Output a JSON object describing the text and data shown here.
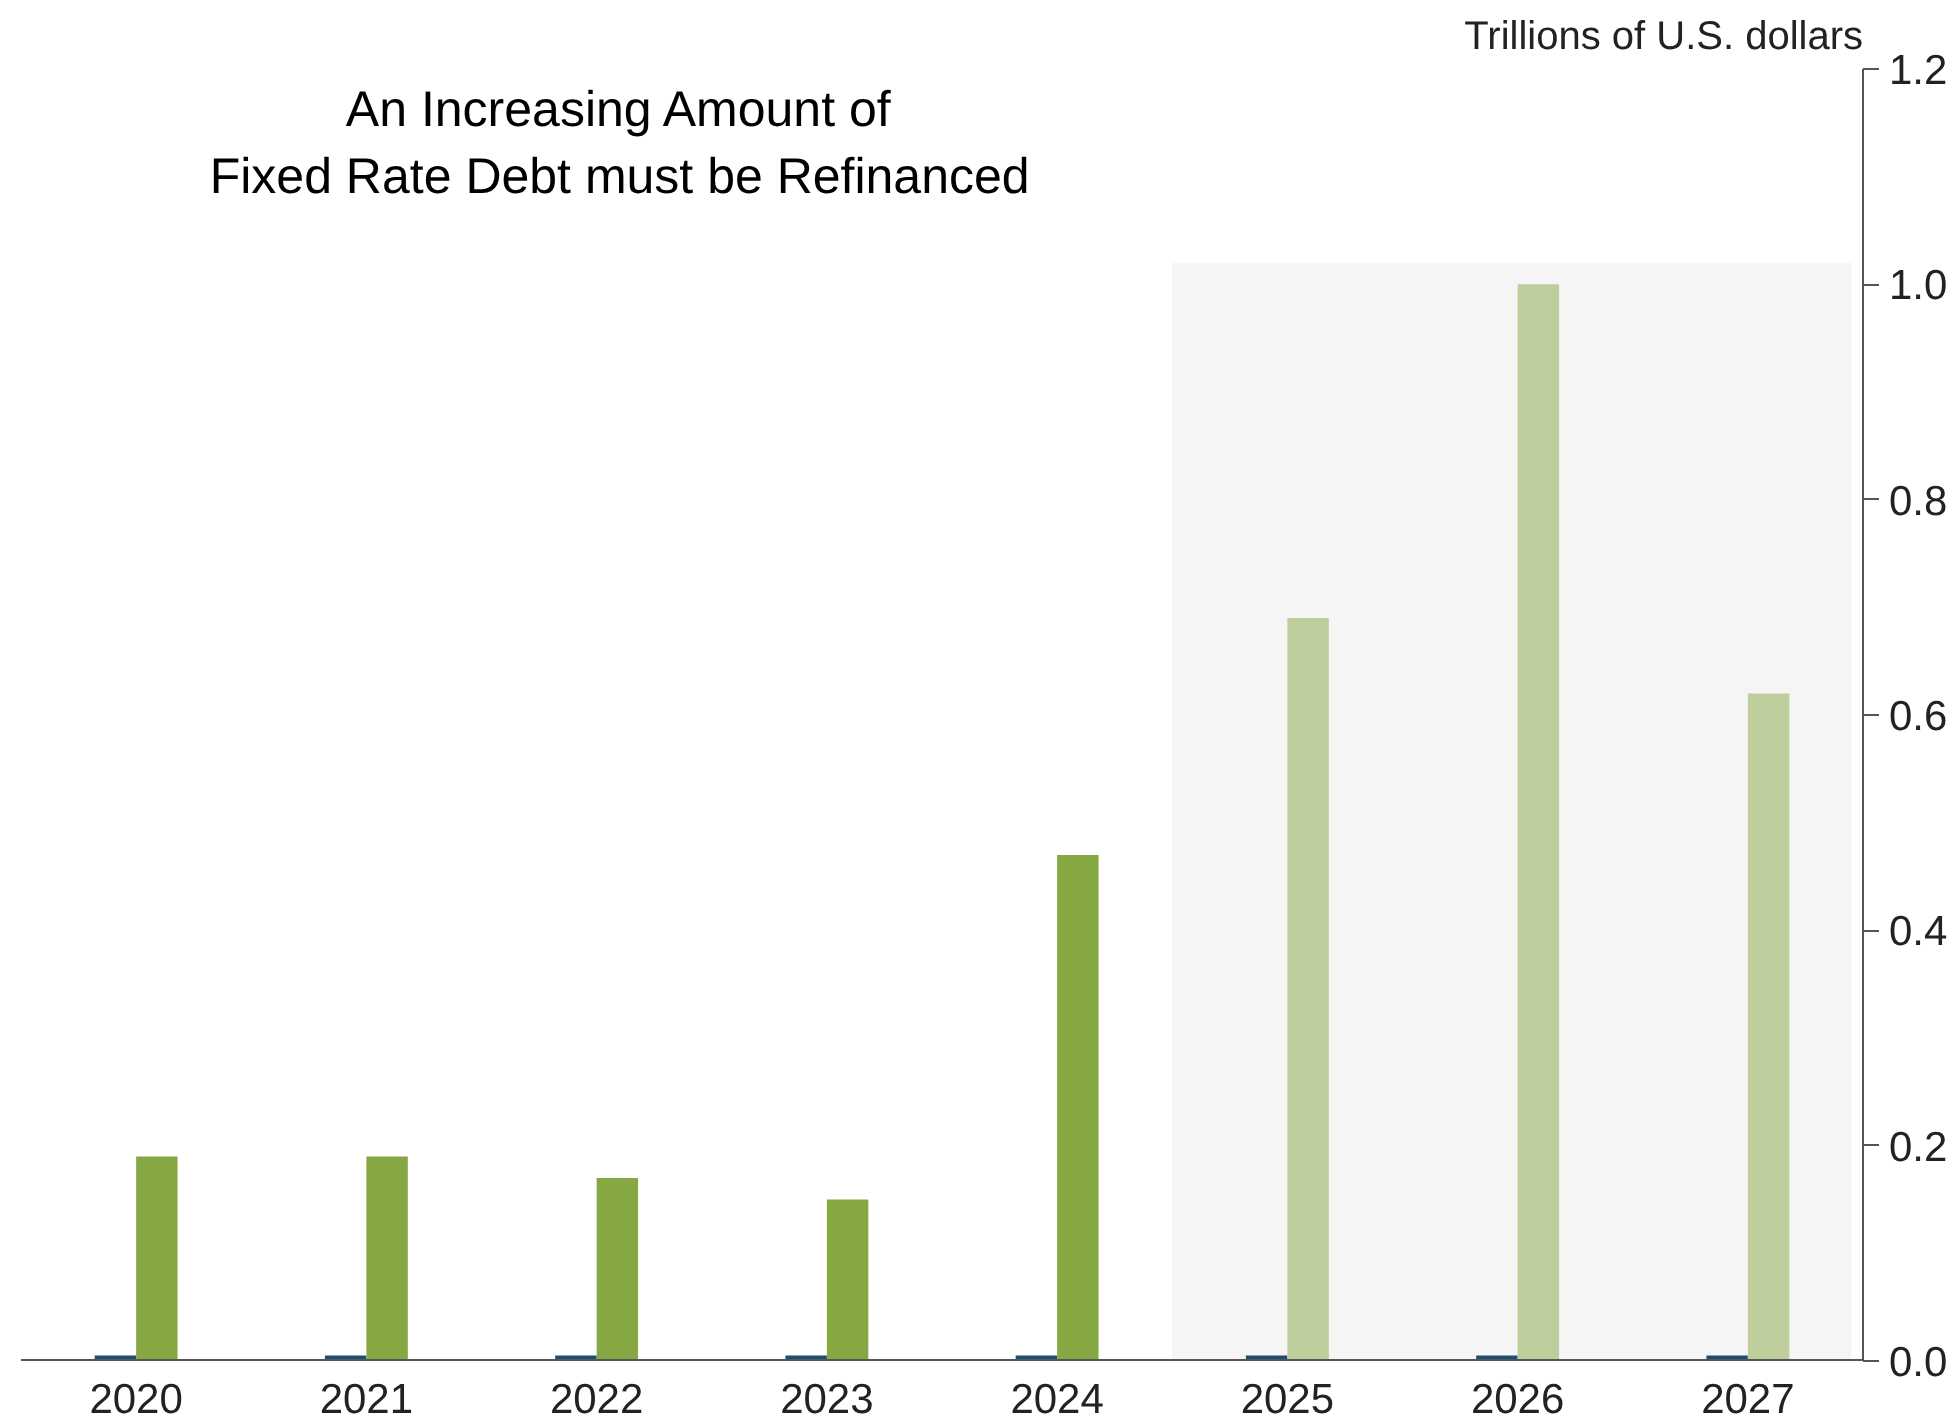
{
  "chart_data": {
    "type": "bar",
    "title": "An Increasing Amount of\nFixed Rate Debt must be Refinanced",
    "ylabel": "Trillions of U.S. dollars",
    "categories": [
      "2020",
      "2021",
      "2022",
      "2023",
      "2024",
      "2025",
      "2026",
      "2027"
    ],
    "series": [
      {
        "color": "#1b4f72",
        "values": [
          0.005,
          0.005,
          0.005,
          0.005,
          0.005,
          0.005,
          0.005,
          0.005
        ]
      },
      {
        "colors": [
          "#86a843",
          "#86a843",
          "#86a843",
          "#86a843",
          "#86a843",
          "#bdce9c",
          "#bdce9c",
          "#bdce9c"
        ],
        "values": [
          0.19,
          0.19,
          0.17,
          0.15,
          0.47,
          0.69,
          1.0,
          0.62
        ]
      }
    ],
    "ylim": [
      0,
      1.2
    ],
    "yticks": [
      {
        "value": 0,
        "label": "0.0"
      },
      {
        "value": 0.2,
        "label": "0.2"
      },
      {
        "value": 0.4,
        "label": "0.4"
      },
      {
        "value": 0.6,
        "label": "0.6"
      },
      {
        "value": 0.8,
        "label": "0.8"
      },
      {
        "value": 1,
        "label": "1.0"
      },
      {
        "value": 1.2,
        "label": "1.2"
      }
    ],
    "bands": [
      {
        "axis": "x",
        "from": "2025",
        "to": "2027",
        "color": "#f5f5f5"
      }
    ]
  }
}
